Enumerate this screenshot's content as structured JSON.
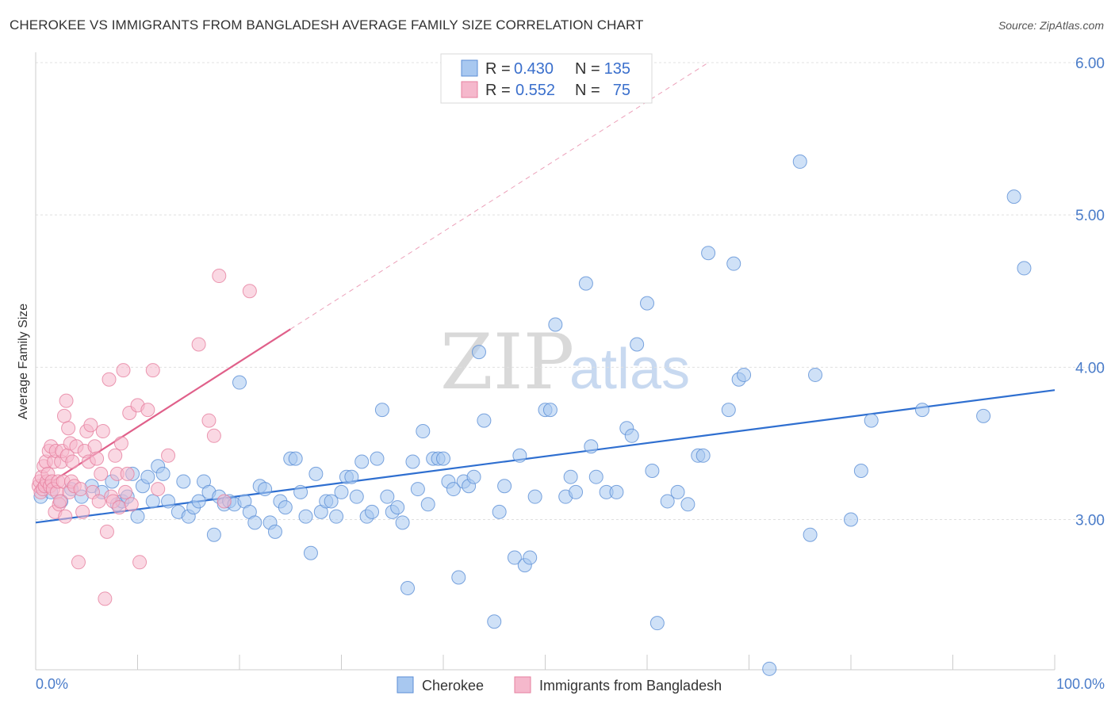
{
  "header": {
    "title": "CHEROKEE VS IMMIGRANTS FROM BANGLADESH AVERAGE FAMILY SIZE CORRELATION CHART",
    "source": "Source: ZipAtlas.com"
  },
  "watermark": {
    "zip": "ZIP",
    "atlas": "atlas"
  },
  "legend": {
    "rows": [
      {
        "r_label": "R =",
        "r_value": "0.430",
        "n_label": "N =",
        "n_value": "135"
      },
      {
        "r_label": "R =",
        "r_value": "0.552",
        "n_label": "N =",
        "n_value": "75"
      }
    ]
  },
  "bottom_legend": {
    "items": [
      "Cherokee",
      "Immigrants from Bangladesh"
    ]
  },
  "colors": {
    "cherokee_fill": "#a8c8f0",
    "cherokee_stroke": "#5b8ed6",
    "cherokee_line": "#2f6fd0",
    "bangladesh_fill": "#f5b8cc",
    "bangladesh_stroke": "#e6809f",
    "bangladesh_line": "#e0608a",
    "tick_text": "#4a7cc9",
    "grid": "#e0e0e0"
  },
  "chart_data": {
    "type": "scatter",
    "title": "CHEROKEE VS IMMIGRANTS FROM BANGLADESH AVERAGE FAMILY SIZE CORRELATION CHART",
    "xlabel": "",
    "ylabel": "Average Family Size",
    "xlim": [
      0,
      100
    ],
    "ylim": [
      2.0,
      6.15
    ],
    "x_tick_labels": [
      "0.0%",
      "100.0%"
    ],
    "y_ticks": [
      3.0,
      4.0,
      5.0,
      6.0
    ],
    "y_tick_labels": [
      "3.00",
      "4.00",
      "5.00",
      "6.00"
    ],
    "grid": true,
    "legend_position": "top-center",
    "series": [
      {
        "name": "Cherokee",
        "R": 0.43,
        "N": 135,
        "trend": {
          "x": [
            0,
            100
          ],
          "y": [
            2.98,
            3.85
          ]
        },
        "points": [
          [
            0.5,
            3.15
          ],
          [
            1.5,
            3.18
          ],
          [
            2.5,
            3.12
          ],
          [
            3.5,
            3.2
          ],
          [
            4.5,
            3.15
          ],
          [
            5.5,
            3.22
          ],
          [
            6.5,
            3.18
          ],
          [
            7.5,
            3.25
          ],
          [
            8,
            3.1
          ],
          [
            8.5,
            3.12
          ],
          [
            9,
            3.15
          ],
          [
            9.5,
            3.3
          ],
          [
            10,
            3.02
          ],
          [
            10.5,
            3.22
          ],
          [
            11,
            3.28
          ],
          [
            11.5,
            3.12
          ],
          [
            12,
            3.35
          ],
          [
            12.5,
            3.3
          ],
          [
            13,
            3.12
          ],
          [
            14,
            3.05
          ],
          [
            14.5,
            3.25
          ],
          [
            15,
            3.02
          ],
          [
            15.5,
            3.08
          ],
          [
            16,
            3.12
          ],
          [
            16.5,
            3.25
          ],
          [
            17,
            3.18
          ],
          [
            17.5,
            2.9
          ],
          [
            18,
            3.15
          ],
          [
            18.5,
            3.1
          ],
          [
            19,
            3.12
          ],
          [
            19.5,
            3.1
          ],
          [
            20,
            3.9
          ],
          [
            20.5,
            3.12
          ],
          [
            21,
            3.05
          ],
          [
            21.5,
            2.98
          ],
          [
            22,
            3.22
          ],
          [
            22.5,
            3.2
          ],
          [
            23,
            2.98
          ],
          [
            23.5,
            2.92
          ],
          [
            24,
            3.12
          ],
          [
            24.5,
            3.08
          ],
          [
            25,
            3.4
          ],
          [
            25.5,
            3.4
          ],
          [
            26,
            3.18
          ],
          [
            26.5,
            3.02
          ],
          [
            27,
            2.78
          ],
          [
            27.5,
            3.3
          ],
          [
            28,
            3.05
          ],
          [
            28.5,
            3.12
          ],
          [
            29,
            3.12
          ],
          [
            29.5,
            3.02
          ],
          [
            30,
            3.18
          ],
          [
            30.5,
            3.28
          ],
          [
            31,
            3.28
          ],
          [
            31.5,
            3.15
          ],
          [
            32,
            3.38
          ],
          [
            32.5,
            3.02
          ],
          [
            33,
            3.05
          ],
          [
            33.5,
            3.4
          ],
          [
            34,
            3.72
          ],
          [
            34.5,
            3.15
          ],
          [
            35,
            3.05
          ],
          [
            35.5,
            3.08
          ],
          [
            36,
            2.98
          ],
          [
            36.5,
            2.55
          ],
          [
            37,
            3.38
          ],
          [
            37.5,
            3.2
          ],
          [
            38,
            3.58
          ],
          [
            38.5,
            3.1
          ],
          [
            39,
            3.4
          ],
          [
            39.5,
            3.4
          ],
          [
            40,
            3.4
          ],
          [
            40.5,
            3.25
          ],
          [
            41,
            3.2
          ],
          [
            41.5,
            2.62
          ],
          [
            42,
            3.25
          ],
          [
            42.5,
            3.22
          ],
          [
            43,
            3.28
          ],
          [
            43.5,
            4.1
          ],
          [
            44,
            3.65
          ],
          [
            45,
            2.33
          ],
          [
            45.5,
            3.05
          ],
          [
            46,
            3.22
          ],
          [
            47,
            2.75
          ],
          [
            47.5,
            3.42
          ],
          [
            48,
            2.7
          ],
          [
            48.5,
            2.75
          ],
          [
            49,
            3.15
          ],
          [
            50,
            3.72
          ],
          [
            50.5,
            3.72
          ],
          [
            51,
            4.28
          ],
          [
            52,
            3.15
          ],
          [
            52.5,
            3.28
          ],
          [
            53,
            3.18
          ],
          [
            54,
            4.55
          ],
          [
            54.5,
            3.48
          ],
          [
            55,
            3.28
          ],
          [
            56,
            3.18
          ],
          [
            57,
            3.18
          ],
          [
            58,
            3.6
          ],
          [
            58.5,
            3.55
          ],
          [
            59,
            4.15
          ],
          [
            60,
            4.42
          ],
          [
            60.5,
            3.32
          ],
          [
            61,
            2.32
          ],
          [
            62,
            3.12
          ],
          [
            63,
            3.18
          ],
          [
            64,
            3.1
          ],
          [
            65,
            3.42
          ],
          [
            65.5,
            3.42
          ],
          [
            66,
            4.75
          ],
          [
            68,
            3.72
          ],
          [
            68.5,
            4.68
          ],
          [
            69,
            3.92
          ],
          [
            69.5,
            3.95
          ],
          [
            72,
            2.02
          ],
          [
            75,
            5.35
          ],
          [
            76,
            2.9
          ],
          [
            76.5,
            3.95
          ],
          [
            80,
            3.0
          ],
          [
            81,
            3.32
          ],
          [
            82,
            3.65
          ],
          [
            87,
            3.72
          ],
          [
            93,
            3.68
          ],
          [
            96,
            5.12
          ],
          [
            97,
            4.65
          ]
        ]
      },
      {
        "name": "Immigrants from Bangladesh",
        "R": 0.552,
        "N": 75,
        "trend": {
          "x": [
            0,
            25
          ],
          "y": [
            3.18,
            4.25
          ]
        },
        "trend_extension": {
          "x": [
            25,
            66
          ],
          "y": [
            4.25,
            6.0
          ]
        },
        "points": [
          [
            0.3,
            3.22
          ],
          [
            0.4,
            3.25
          ],
          [
            0.5,
            3.18
          ],
          [
            0.6,
            3.28
          ],
          [
            0.7,
            3.2
          ],
          [
            0.8,
            3.35
          ],
          [
            0.9,
            3.22
          ],
          [
            1.0,
            3.38
          ],
          [
            1.1,
            3.25
          ],
          [
            1.2,
            3.3
          ],
          [
            1.3,
            3.45
          ],
          [
            1.4,
            3.22
          ],
          [
            1.5,
            3.48
          ],
          [
            1.6,
            3.25
          ],
          [
            1.7,
            3.2
          ],
          [
            1.8,
            3.38
          ],
          [
            1.9,
            3.05
          ],
          [
            2.0,
            3.45
          ],
          [
            2.1,
            3.18
          ],
          [
            2.2,
            3.25
          ],
          [
            2.3,
            3.1
          ],
          [
            2.4,
            3.12
          ],
          [
            2.5,
            3.38
          ],
          [
            2.6,
            3.45
          ],
          [
            2.7,
            3.25
          ],
          [
            2.8,
            3.68
          ],
          [
            2.9,
            3.02
          ],
          [
            3.0,
            3.78
          ],
          [
            3.1,
            3.42
          ],
          [
            3.2,
            3.6
          ],
          [
            3.3,
            3.18
          ],
          [
            3.4,
            3.5
          ],
          [
            3.5,
            3.25
          ],
          [
            3.6,
            3.38
          ],
          [
            3.8,
            3.22
          ],
          [
            4.0,
            3.48
          ],
          [
            4.2,
            2.72
          ],
          [
            4.4,
            3.2
          ],
          [
            4.6,
            3.05
          ],
          [
            4.8,
            3.45
          ],
          [
            5.0,
            3.58
          ],
          [
            5.2,
            3.38
          ],
          [
            5.4,
            3.62
          ],
          [
            5.6,
            3.18
          ],
          [
            5.8,
            3.48
          ],
          [
            6.0,
            3.4
          ],
          [
            6.2,
            3.12
          ],
          [
            6.4,
            3.3
          ],
          [
            6.6,
            3.58
          ],
          [
            6.8,
            2.48
          ],
          [
            7.0,
            2.92
          ],
          [
            7.2,
            3.92
          ],
          [
            7.4,
            3.15
          ],
          [
            7.6,
            3.12
          ],
          [
            7.8,
            3.42
          ],
          [
            8.0,
            3.3
          ],
          [
            8.2,
            3.08
          ],
          [
            8.4,
            3.5
          ],
          [
            8.6,
            3.98
          ],
          [
            8.8,
            3.18
          ],
          [
            9.0,
            3.3
          ],
          [
            9.2,
            3.7
          ],
          [
            9.4,
            3.1
          ],
          [
            10.0,
            3.75
          ],
          [
            10.2,
            2.72
          ],
          [
            11.0,
            3.72
          ],
          [
            11.5,
            3.98
          ],
          [
            12.0,
            3.2
          ],
          [
            13.0,
            3.42
          ],
          [
            16.0,
            4.15
          ],
          [
            17.0,
            3.65
          ],
          [
            17.5,
            3.55
          ],
          [
            18.0,
            4.6
          ],
          [
            18.5,
            3.12
          ],
          [
            21.0,
            4.5
          ]
        ]
      }
    ]
  }
}
